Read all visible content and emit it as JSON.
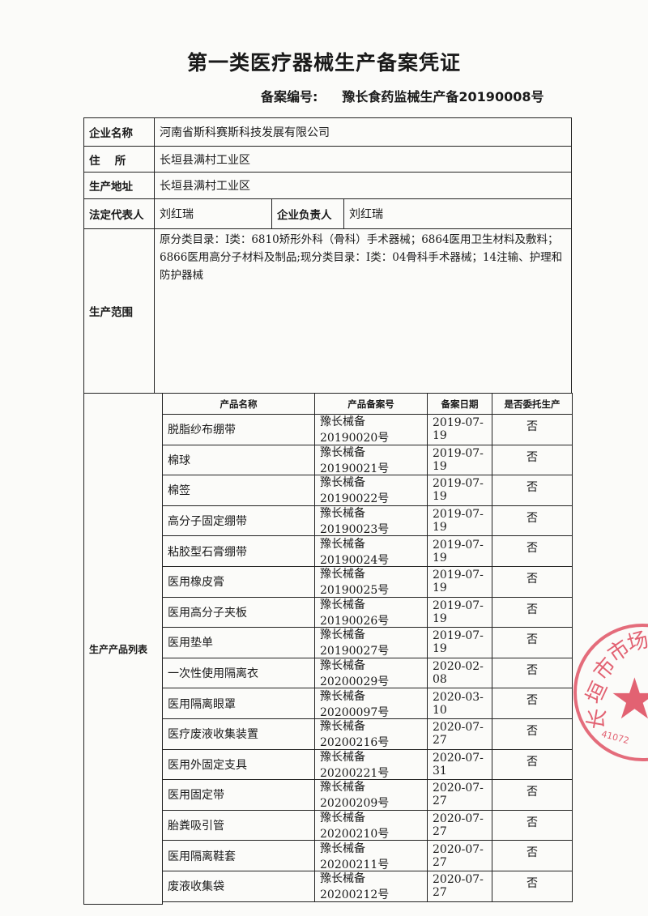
{
  "title": "第一类医疗器械生产备案凭证",
  "registration": {
    "label": "备案编号:",
    "value": "豫长食药监械生产备20190008号"
  },
  "company": {
    "label": "企业名称",
    "value": "河南省斯科赛斯科技发展有限公司"
  },
  "residence": {
    "label": "住　 所",
    "value": "长垣县满村工业区"
  },
  "production_address": {
    "label": "生产地址",
    "value": "长垣县满村工业区"
  },
  "legal_rep": {
    "label": "法定代表人",
    "value": "刘红瑞"
  },
  "company_head": {
    "label": "企业负责人",
    "value": "刘红瑞"
  },
  "scope": {
    "label": "生产范围",
    "value": "原分类目录：Ⅰ类：6810矫形外科（骨科）手术器械；6864医用卫生材料及敷料；6866医用高分子材料及制品;现分类目录：Ⅰ类：04骨科手术器械；14注输、护理和防护器械"
  },
  "products": {
    "label": "生产产品列表",
    "headers": [
      "产品名称",
      "产品备案号",
      "备案日期",
      "是否委托生产"
    ],
    "rows": [
      [
        "脱脂纱布绷带",
        "豫长械备20190020号",
        "2019-07-19",
        "否"
      ],
      [
        "棉球",
        "豫长械备20190021号",
        "2019-07-19",
        "否"
      ],
      [
        "棉签",
        "豫长械备20190022号",
        "2019-07-19",
        "否"
      ],
      [
        "高分子固定绷带",
        "豫长械备20190023号",
        "2019-07-19",
        "否"
      ],
      [
        "粘胶型石膏绷带",
        "豫长械备20190024号",
        "2019-07-19",
        "否"
      ],
      [
        "医用橡皮膏",
        "豫长械备20190025号",
        "2019-07-19",
        "否"
      ],
      [
        "医用高分子夹板",
        "豫长械备20190026号",
        "2019-07-19",
        "否"
      ],
      [
        "医用垫单",
        "豫长械备20190027号",
        "2019-07-19",
        "否"
      ],
      [
        "一次性使用隔离衣",
        "豫长械备20200029号",
        "2020-02-08",
        "否"
      ],
      [
        "医用隔离眼罩",
        "豫长械备20200097号",
        "2020-03-10",
        "否"
      ],
      [
        "医疗废液收集装置",
        "豫长械备20200216号",
        "2020-07-27",
        "否"
      ],
      [
        "医用外固定支具",
        "豫长械备20200221号",
        "2020-07-31",
        "否"
      ],
      [
        "医用固定带",
        "豫长械备20200209号",
        "2020-07-27",
        "否"
      ],
      [
        "胎粪吸引管",
        "豫长械备20200210号",
        "2020-07-27",
        "否"
      ],
      [
        "医用隔离鞋套",
        "豫长械备20200211号",
        "2020-07-27",
        "否"
      ],
      [
        "废液收集袋",
        "豫长械备20200212号",
        "2020-07-27",
        "否"
      ]
    ]
  },
  "stamp": {
    "text": "长垣市市场监",
    "code": "41072",
    "color": "#dc3c50"
  }
}
